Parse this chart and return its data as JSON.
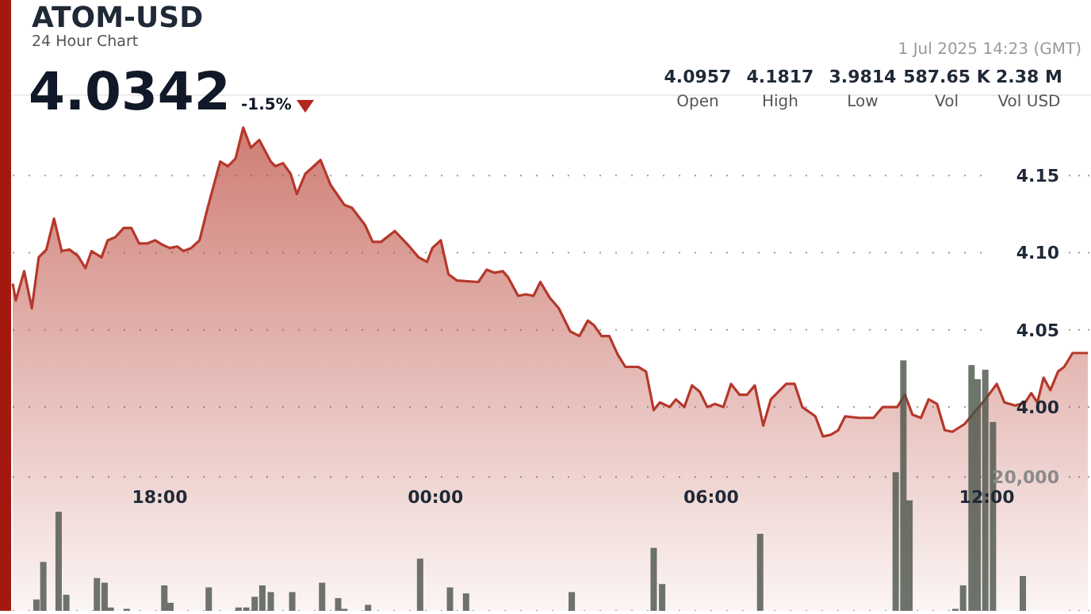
{
  "chart_data": {
    "type": "area",
    "title": "ATOM-USD",
    "subtitle": "24 Hour Chart",
    "annotations": [
      "4.0342",
      "-1.5%",
      "1 Jul 2025 14:23 (GMT)",
      "4.0957",
      "Open",
      "4.1817",
      "High",
      "3.9814",
      "Low",
      "587.65 K",
      "Vol",
      "2.38 M",
      "Vol USD"
    ],
    "xlim": [
      "2025-06-30T14:48",
      "2025-07-01T14:16"
    ],
    "xticks": [
      {
        "value": "2025-06-30T18:00",
        "label": "18:00"
      },
      {
        "value": "2025-07-01T00:00",
        "label": "00:00"
      },
      {
        "value": "2025-07-01T06:00",
        "label": "06:00"
      },
      {
        "value": "2025-07-01T12:00",
        "label": "12:00"
      }
    ],
    "ylim": [
      3.868,
      4.202
    ],
    "yticks": [
      {
        "value": 4,
        "label": "4.00"
      },
      {
        "value": 4.05,
        "label": "4.05"
      },
      {
        "value": 4.1,
        "label": "4.10"
      },
      {
        "value": 4.15,
        "label": "4.15"
      }
    ],
    "y2lim": [
      0,
      77000
    ],
    "y2ticks": [
      {
        "value": 0,
        "label": null
      },
      {
        "value": 20000,
        "label": "20,000"
      }
    ],
    "grid": true,
    "series": [
      {
        "color": "#b5382b",
        "x": [
          "2025-06-30T14:48",
          "2025-06-30T14:52",
          "2025-06-30T15:03",
          "2025-06-30T15:13",
          "2025-06-30T15:22",
          "2025-06-30T15:32",
          "2025-06-30T15:42",
          "2025-06-30T15:52",
          "2025-06-30T16:02",
          "2025-06-30T16:13",
          "2025-06-30T16:23",
          "2025-06-30T16:31",
          "2025-06-30T16:44",
          "2025-06-30T16:52",
          "2025-06-30T17:02",
          "2025-06-30T17:13",
          "2025-06-30T17:23",
          "2025-06-30T17:33",
          "2025-06-30T17:44",
          "2025-06-30T17:54",
          "2025-06-30T18:04",
          "2025-06-30T18:13",
          "2025-06-30T18:23",
          "2025-06-30T18:31",
          "2025-06-30T18:41",
          "2025-06-30T18:52",
          "2025-06-30T19:02",
          "2025-06-30T19:19",
          "2025-06-30T19:29",
          "2025-06-30T19:39",
          "2025-06-30T19:49",
          "2025-06-30T19:59",
          "2025-06-30T20:10",
          "2025-06-30T20:25",
          "2025-06-30T20:31",
          "2025-06-30T20:41",
          "2025-06-30T20:51",
          "2025-06-30T20:59",
          "2025-06-30T21:10",
          "2025-06-30T21:30",
          "2025-06-30T21:43",
          "2025-06-30T22:01",
          "2025-06-30T22:11",
          "2025-06-30T22:28",
          "2025-06-30T22:38",
          "2025-06-30T22:49",
          "2025-06-30T23:07",
          "2025-06-30T23:26",
          "2025-06-30T23:38",
          "2025-06-30T23:49",
          "2025-06-30T23:56",
          "2025-07-01T00:07",
          "2025-07-01T00:17",
          "2025-07-01T00:28",
          "2025-07-01T00:56",
          "2025-07-01T01:07",
          "2025-07-01T01:17",
          "2025-07-01T01:28",
          "2025-07-01T01:35",
          "2025-07-01T01:48",
          "2025-07-01T01:58",
          "2025-07-01T02:08",
          "2025-07-01T02:17",
          "2025-07-01T02:29",
          "2025-07-01T02:41",
          "2025-07-01T02:56",
          "2025-07-01T03:08",
          "2025-07-01T03:19",
          "2025-07-01T03:27",
          "2025-07-01T03:37",
          "2025-07-01T03:47",
          "2025-07-01T03:58",
          "2025-07-01T04:08",
          "2025-07-01T04:25",
          "2025-07-01T04:35",
          "2025-07-01T04:45",
          "2025-07-01T04:53",
          "2025-07-01T05:06",
          "2025-07-01T05:14",
          "2025-07-01T05:25",
          "2025-07-01T05:35",
          "2025-07-01T05:45",
          "2025-07-01T05:55",
          "2025-07-01T06:05",
          "2025-07-01T06:16",
          "2025-07-01T06:26",
          "2025-07-01T06:37",
          "2025-07-01T06:47",
          "2025-07-01T06:57",
          "2025-07-01T07:08",
          "2025-07-01T07:18",
          "2025-07-01T07:38",
          "2025-07-01T07:49",
          "2025-07-01T07:59",
          "2025-07-01T08:16",
          "2025-07-01T08:26",
          "2025-07-01T08:36",
          "2025-07-01T08:46",
          "2025-07-01T08:55",
          "2025-07-01T09:13",
          "2025-07-01T09:32",
          "2025-07-01T09:44",
          "2025-07-01T10:03",
          "2025-07-01T10:13",
          "2025-07-01T10:23",
          "2025-07-01T10:34",
          "2025-07-01T10:44",
          "2025-07-01T10:55",
          "2025-07-01T11:05",
          "2025-07-01T11:15",
          "2025-07-01T11:31",
          "2025-07-01T11:46",
          "2025-07-01T11:58",
          "2025-07-01T12:13",
          "2025-07-01T12:23",
          "2025-07-01T12:37",
          "2025-07-01T12:50",
          "2025-07-01T12:58",
          "2025-07-01T13:06",
          "2025-07-01T13:14",
          "2025-07-01T13:23",
          "2025-07-01T13:33",
          "2025-07-01T13:41",
          "2025-07-01T13:52",
          "2025-07-01T14:12"
        ],
        "values": [
          4.08,
          4.069,
          4.088,
          4.064,
          4.097,
          4.102,
          4.122,
          4.101,
          4.102,
          4.098,
          4.09,
          4.101,
          4.097,
          4.108,
          4.11,
          4.116,
          4.116,
          4.106,
          4.106,
          4.108,
          4.105,
          4.103,
          4.104,
          4.101,
          4.103,
          4.108,
          4.128,
          4.159,
          4.156,
          4.161,
          4.181,
          4.168,
          4.173,
          4.159,
          4.156,
          4.158,
          4.151,
          4.138,
          4.151,
          4.16,
          4.144,
          4.131,
          4.129,
          4.118,
          4.107,
          4.107,
          4.114,
          4.104,
          4.097,
          4.094,
          4.103,
          4.108,
          4.086,
          4.082,
          4.081,
          4.089,
          4.087,
          4.088,
          4.084,
          4.072,
          4.073,
          4.072,
          4.081,
          4.071,
          4.064,
          4.049,
          4.046,
          4.056,
          4.053,
          4.046,
          4.046,
          4.034,
          4.026,
          4.026,
          4.023,
          3.998,
          4.003,
          4.0,
          4.005,
          4.0,
          4.014,
          4.01,
          4.0,
          4.002,
          4.0,
          4.015,
          4.008,
          4.008,
          4.014,
          3.988,
          4.005,
          4.015,
          4.015,
          4.0,
          3.994,
          3.981,
          3.982,
          3.985,
          3.994,
          3.993,
          3.993,
          4.0,
          4.0,
          4.008,
          3.995,
          3.993,
          4.005,
          4.002,
          3.985,
          3.984,
          3.989,
          3.998,
          4.005,
          4.015,
          4.003,
          4.001,
          4.003,
          4.009,
          4.003,
          4.019,
          4.011,
          4.023,
          4.026,
          4.035,
          4.035
        ]
      },
      {
        "type": "bar",
        "axis": "y2",
        "color": "#4a5248",
        "x": [
          "2025-06-30T15:19",
          "2025-06-30T15:28",
          "2025-06-30T15:48",
          "2025-06-30T15:58",
          "2025-06-30T16:38",
          "2025-06-30T16:48",
          "2025-06-30T16:56",
          "2025-06-30T17:17",
          "2025-06-30T18:06",
          "2025-06-30T18:14",
          "2025-06-30T19:04",
          "2025-06-30T19:43",
          "2025-06-30T19:53",
          "2025-06-30T20:04",
          "2025-06-30T20:14",
          "2025-06-30T20:25",
          "2025-06-30T20:53",
          "2025-06-30T21:32",
          "2025-06-30T21:53",
          "2025-06-30T22:01",
          "2025-06-30T22:32",
          "2025-06-30T23:40",
          "2025-07-01T00:19",
          "2025-07-01T00:40",
          "2025-07-01T02:58",
          "2025-07-01T04:45",
          "2025-07-01T04:56",
          "2025-07-01T07:04",
          "2025-07-01T10:01",
          "2025-07-01T10:11",
          "2025-07-01T10:19",
          "2025-07-01T11:19",
          "2025-07-01T11:29",
          "2025-07-01T11:40",
          "2025-07-01T11:48",
          "2025-07-01T11:58",
          "2025-07-01T12:08",
          "2025-07-01T12:47"
        ],
        "values": [
          1700,
          7300,
          14800,
          2400,
          4900,
          4200,
          500,
          300,
          3800,
          1200,
          3500,
          500,
          500,
          2100,
          3800,
          2800,
          2800,
          4200,
          1900,
          300,
          900,
          7800,
          3500,
          2600,
          2800,
          9400,
          4000,
          11500,
          20700,
          37400,
          16500,
          300,
          3800,
          36700,
          34600,
          36000,
          28200,
          5200
        ]
      }
    ]
  }
}
